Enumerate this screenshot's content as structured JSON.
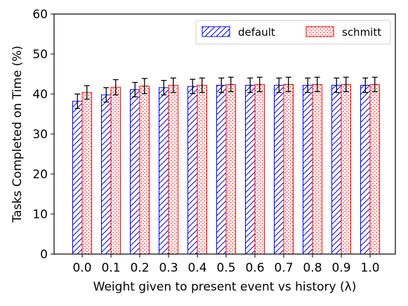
{
  "chart_data": {
    "type": "bar",
    "xlabel": "Weight given to present event vs history (λ)",
    "ylabel": "Tasks Completed on Time (%)",
    "ylim": [
      0,
      60
    ],
    "yticks": [
      0,
      10,
      20,
      30,
      40,
      50,
      60
    ],
    "categories": [
      "0.0",
      "0.1",
      "0.2",
      "0.3",
      "0.4",
      "0.5",
      "0.6",
      "0.7",
      "0.8",
      "0.9",
      "1.0"
    ],
    "series": [
      {
        "name": "default",
        "color": "#0000ff",
        "pattern": "diagonal-hatch",
        "values": [
          38.2,
          39.8,
          41.1,
          41.6,
          41.9,
          42.2,
          42.2,
          42.2,
          42.2,
          42.2,
          42.2
        ],
        "errors": [
          1.8,
          1.8,
          1.8,
          1.8,
          1.8,
          1.8,
          1.8,
          1.8,
          1.8,
          1.8,
          1.8
        ]
      },
      {
        "name": "schmitt",
        "color": "#ff0000",
        "pattern": "dots",
        "values": [
          40.4,
          41.7,
          42.0,
          42.2,
          42.2,
          42.4,
          42.4,
          42.4,
          42.4,
          42.4,
          42.4
        ],
        "errors": [
          1.7,
          1.9,
          1.9,
          1.8,
          1.8,
          1.8,
          1.8,
          1.8,
          1.8,
          1.8,
          1.8
        ]
      }
    ],
    "legend_position": "top-right",
    "grid": false
  }
}
